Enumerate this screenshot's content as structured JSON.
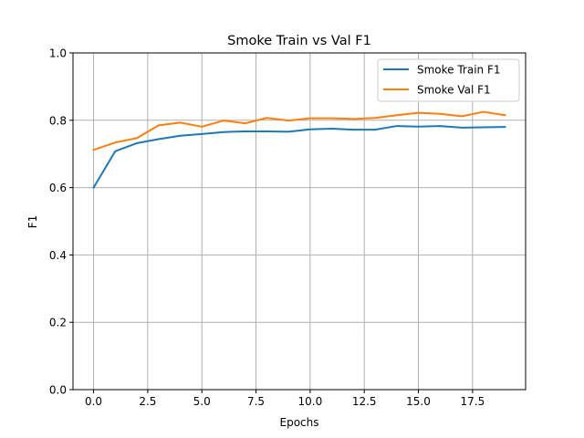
{
  "chart_data": {
    "type": "line",
    "title": "Smoke Train vs Val F1",
    "xlabel": "Epochs",
    "ylabel": "F1",
    "xlim": [
      -0.95,
      19.95
    ],
    "ylim": [
      0.0,
      1.0
    ],
    "x_ticks": [
      0.0,
      2.5,
      5.0,
      7.5,
      10.0,
      12.5,
      15.0,
      17.5
    ],
    "x_tick_labels": [
      "0.0",
      "2.5",
      "5.0",
      "7.5",
      "10.0",
      "12.5",
      "15.0",
      "17.5"
    ],
    "y_ticks": [
      0.0,
      0.2,
      0.4,
      0.6,
      0.8,
      1.0
    ],
    "y_tick_labels": [
      "0.0",
      "0.2",
      "0.4",
      "0.6",
      "0.8",
      "1.0"
    ],
    "grid": true,
    "legend_position": "top-right",
    "x": [
      0,
      1,
      2,
      3,
      4,
      5,
      6,
      7,
      8,
      9,
      10,
      11,
      12,
      13,
      14,
      15,
      16,
      17,
      18,
      19
    ],
    "series": [
      {
        "name": "Smoke Train F1",
        "color": "#1f77b4",
        "values": [
          0.6,
          0.708,
          0.732,
          0.744,
          0.754,
          0.759,
          0.765,
          0.767,
          0.767,
          0.766,
          0.773,
          0.775,
          0.772,
          0.772,
          0.783,
          0.781,
          0.783,
          0.778,
          0.779,
          0.78
        ]
      },
      {
        "name": "Smoke Val F1",
        "color": "#ff7f0e",
        "values": [
          0.712,
          0.734,
          0.747,
          0.785,
          0.793,
          0.781,
          0.799,
          0.791,
          0.807,
          0.799,
          0.806,
          0.806,
          0.804,
          0.807,
          0.815,
          0.822,
          0.819,
          0.812,
          0.825,
          0.815
        ]
      }
    ]
  }
}
